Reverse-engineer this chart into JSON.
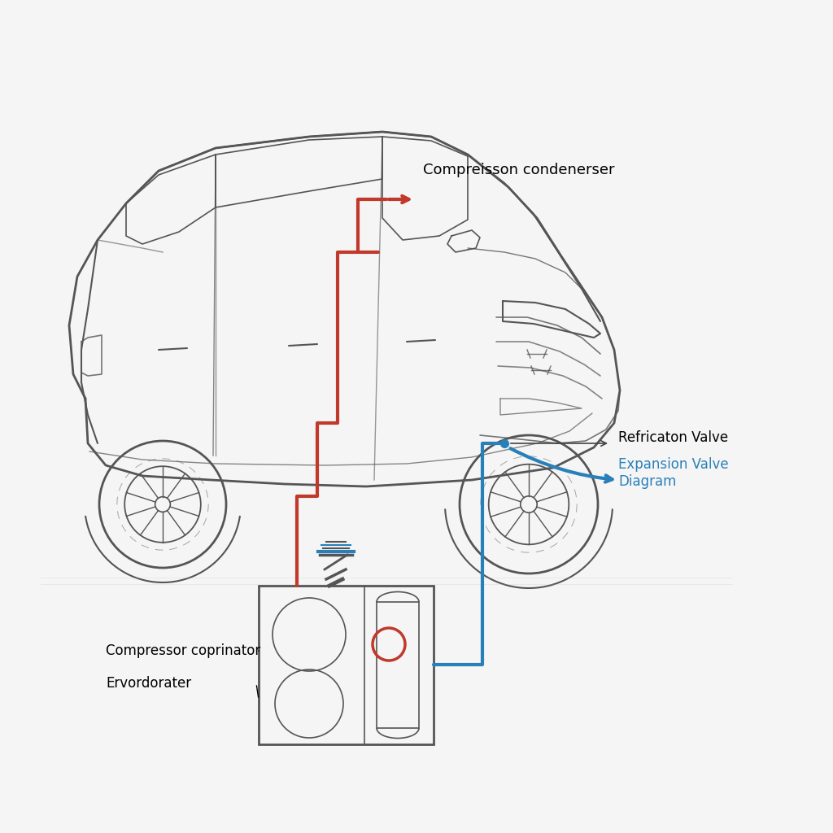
{
  "background_color": "#f5f5f5",
  "labels": {
    "compression_condenser": "Compreisson condenerser",
    "refricaton_valve": "Refricaton Valve",
    "expansion_valve": "Expansion Valve\nDiagram",
    "compressor": "Compressor coprinator",
    "evordorater": "Ervordorater"
  },
  "red_color": "#c0392b",
  "blue_color": "#2980b9",
  "car_color": "#555555",
  "line_width": 2.5,
  "font_size": 12
}
